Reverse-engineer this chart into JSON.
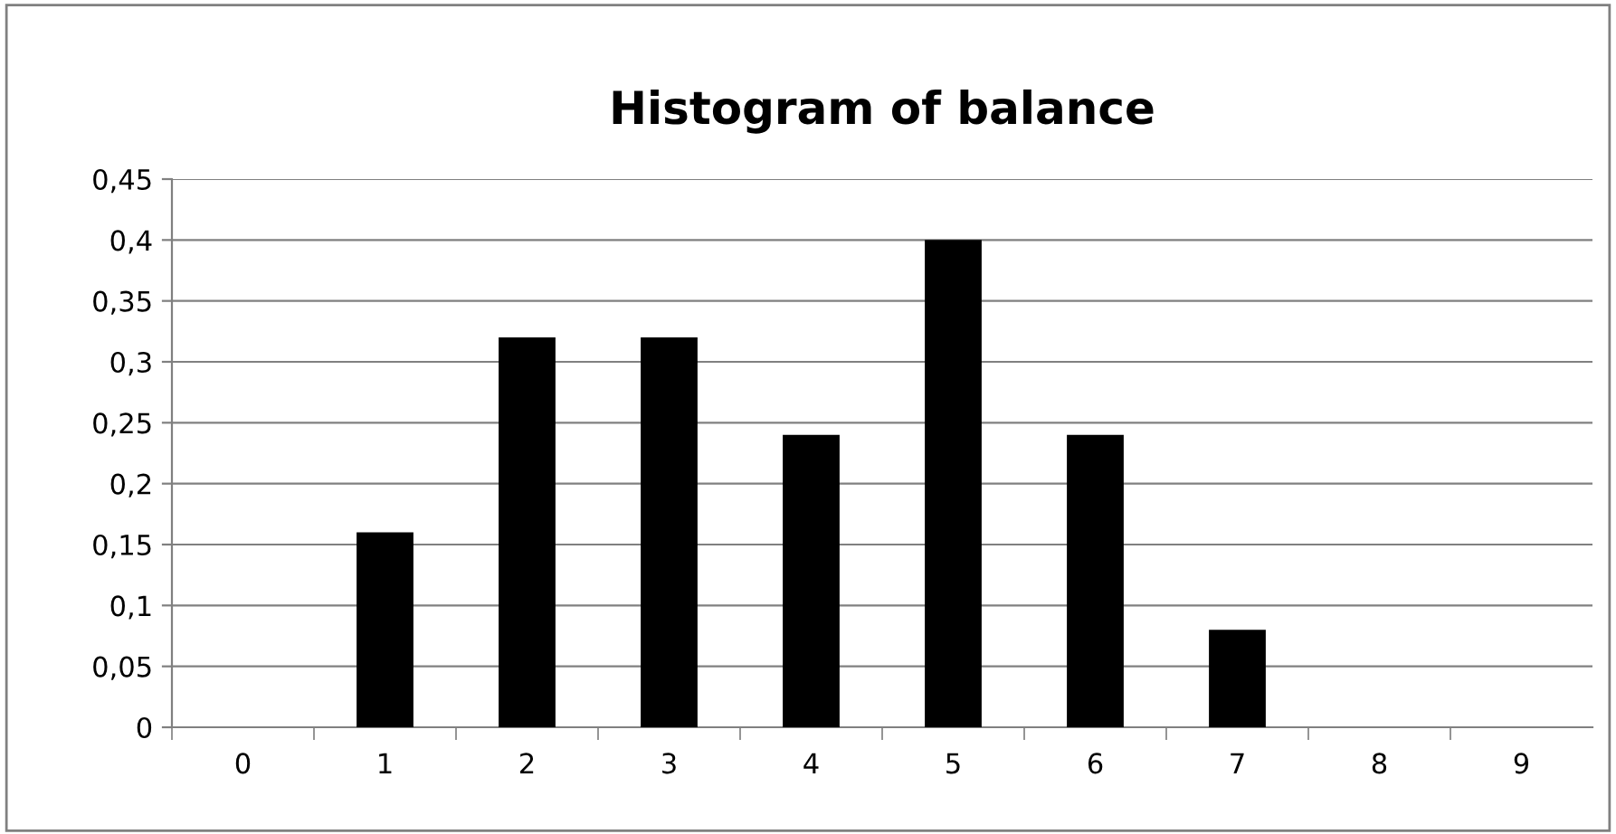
{
  "chart_data": {
    "type": "bar",
    "title": "Histogram of balance",
    "categories": [
      "0",
      "1",
      "2",
      "3",
      "4",
      "5",
      "6",
      "7",
      "8",
      "9"
    ],
    "values": [
      0,
      0.16,
      0.32,
      0.32,
      0.24,
      0.4,
      0.24,
      0.08,
      0,
      0
    ],
    "color": "#000000",
    "ylim": [
      0,
      0.45
    ],
    "yticks": [
      0,
      {
        "value": 0.05,
        "label": "0,05"
      },
      {
        "value": 0.1,
        "label": "0,1"
      },
      {
        "value": 0.15,
        "label": "0,15"
      },
      {
        "value": 0.2,
        "label": "0,2"
      },
      {
        "value": 0.25,
        "label": "0,25"
      },
      {
        "value": 0.3,
        "label": "0,3"
      },
      {
        "value": 0.35,
        "label": "0,35"
      },
      {
        "value": 0.4,
        "label": "0,4"
      },
      {
        "value": 0.45,
        "label": "0,45"
      }
    ],
    "grid": "y",
    "legend": false
  }
}
